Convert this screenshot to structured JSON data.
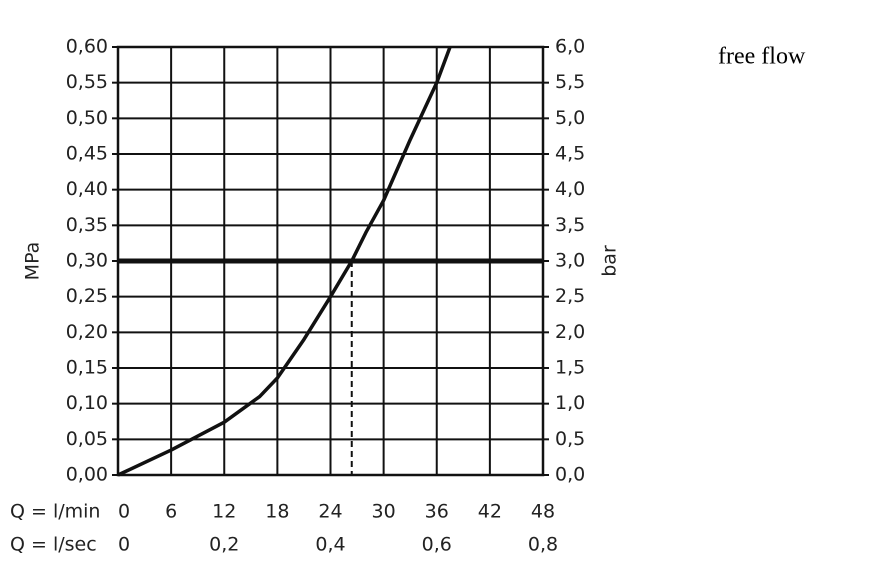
{
  "chart_data": {
    "type": "line",
    "annotation": "free flow",
    "ylabel": "MPa",
    "y2label": "bar",
    "xlabel": "Q = l/min",
    "x2label": "Q = l/sec",
    "x": [
      0,
      6,
      12,
      16,
      18,
      21,
      24,
      26.4,
      28,
      30,
      33,
      36,
      37.5
    ],
    "series": [
      {
        "color": "#111111",
        "values": [
          0,
          0.035,
          0.074,
          0.11,
          0.136,
          0.19,
          0.25,
          0.3,
          0.34,
          0.385,
          0.47,
          0.55,
          0.6
        ]
      }
    ],
    "reference_lines": {
      "y": 0.3,
      "x": 26.4
    },
    "xlim": [
      0,
      48
    ],
    "xticks": [
      0,
      6,
      12,
      18,
      24,
      30,
      36,
      42,
      48
    ],
    "x2lim": [
      0,
      0.8
    ],
    "x2ticks": [
      0,
      {
        "value": 0.2,
        "label": "0,2"
      },
      {
        "value": 0.4,
        "label": "0,4"
      },
      {
        "value": 0.6,
        "label": "0,6"
      },
      {
        "value": 0.8,
        "label": "0,8"
      }
    ],
    "ylim": [
      0,
      0.6
    ],
    "yticks": [
      {
        "value": 0,
        "label": "0,00"
      },
      {
        "value": 0.05,
        "label": "0,05"
      },
      {
        "value": 0.1,
        "label": "0,10"
      },
      {
        "value": 0.15,
        "label": "0,15"
      },
      {
        "value": 0.2,
        "label": "0,20"
      },
      {
        "value": 0.25,
        "label": "0,25"
      },
      {
        "value": 0.3,
        "label": "0,30"
      },
      {
        "value": 0.35,
        "label": "0,35"
      },
      {
        "value": 0.4,
        "label": "0,40"
      },
      {
        "value": 0.45,
        "label": "0,45"
      },
      {
        "value": 0.5,
        "label": "0,50"
      },
      {
        "value": 0.55,
        "label": "0,55"
      },
      {
        "value": 0.6,
        "label": "0,60"
      }
    ],
    "y2lim": [
      0,
      6
    ],
    "y2ticks": [
      {
        "value": 0,
        "label": "0,0"
      },
      {
        "value": 0.5,
        "label": "0,5"
      },
      {
        "value": 1,
        "label": "1,0"
      },
      {
        "value": 1.5,
        "label": "1,5"
      },
      {
        "value": 2,
        "label": "2,0"
      },
      {
        "value": 2.5,
        "label": "2,5"
      },
      {
        "value": 3,
        "label": "3,0"
      },
      {
        "value": 3.5,
        "label": "3,5"
      },
      {
        "value": 4,
        "label": "4,0"
      },
      {
        "value": 4.5,
        "label": "4,5"
      },
      {
        "value": 5,
        "label": "5,0"
      },
      {
        "value": 5.5,
        "label": "5,5"
      },
      {
        "value": 6,
        "label": "6,0"
      }
    ],
    "grid": true
  }
}
